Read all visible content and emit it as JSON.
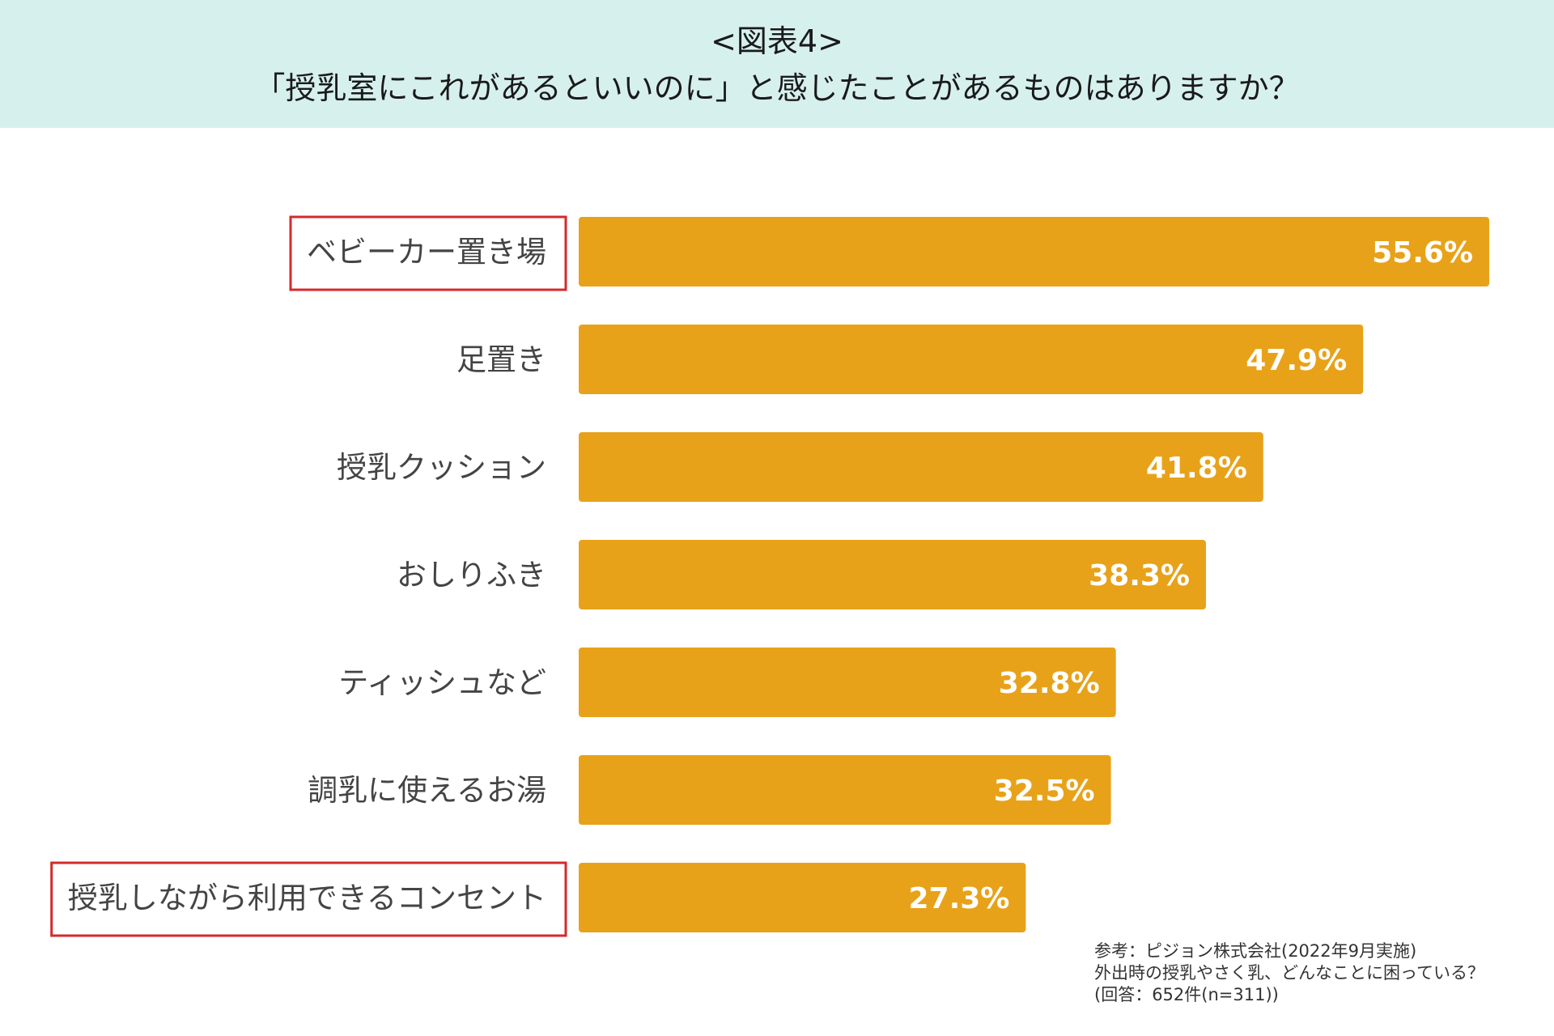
{
  "header": {
    "figure_label": "<図表4>",
    "question": "「授乳室にこれがあるといいのに」と感じたことがあるものはありますか？"
  },
  "chart_data": {
    "type": "bar",
    "orientation": "horizontal",
    "title": "「授乳室にこれがあるといいのに」と感じたことがあるものはありますか？",
    "categories": [
      "ベビーカー置き場",
      "足置き",
      "授乳クッション",
      "おしりふき",
      "ティッシュなど",
      "調乳に使えるお湯",
      "授乳しながら利用できるコンセント"
    ],
    "values": [
      55.6,
      47.9,
      41.8,
      38.3,
      32.8,
      32.5,
      27.3
    ],
    "value_labels": [
      "55.6%",
      "47.9%",
      "41.8%",
      "38.3%",
      "32.8%",
      "32.5%",
      "27.3%"
    ],
    "highlighted": [
      true,
      false,
      false,
      false,
      false,
      false,
      true
    ],
    "xlim": [
      0,
      55.6
    ],
    "xlabel": "",
    "ylabel": "",
    "grid": false
  },
  "colors": {
    "bar": "#e8a219",
    "highlight": "#d42a2a",
    "header_bg": "#d6f0ee"
  },
  "source": {
    "line1": "参考：ピジョン株式会社(2022年9月実施)",
    "line2": "外出時の授乳やさく乳、どんなことに困っている？",
    "line3": "(回答：652件(n=311))"
  }
}
